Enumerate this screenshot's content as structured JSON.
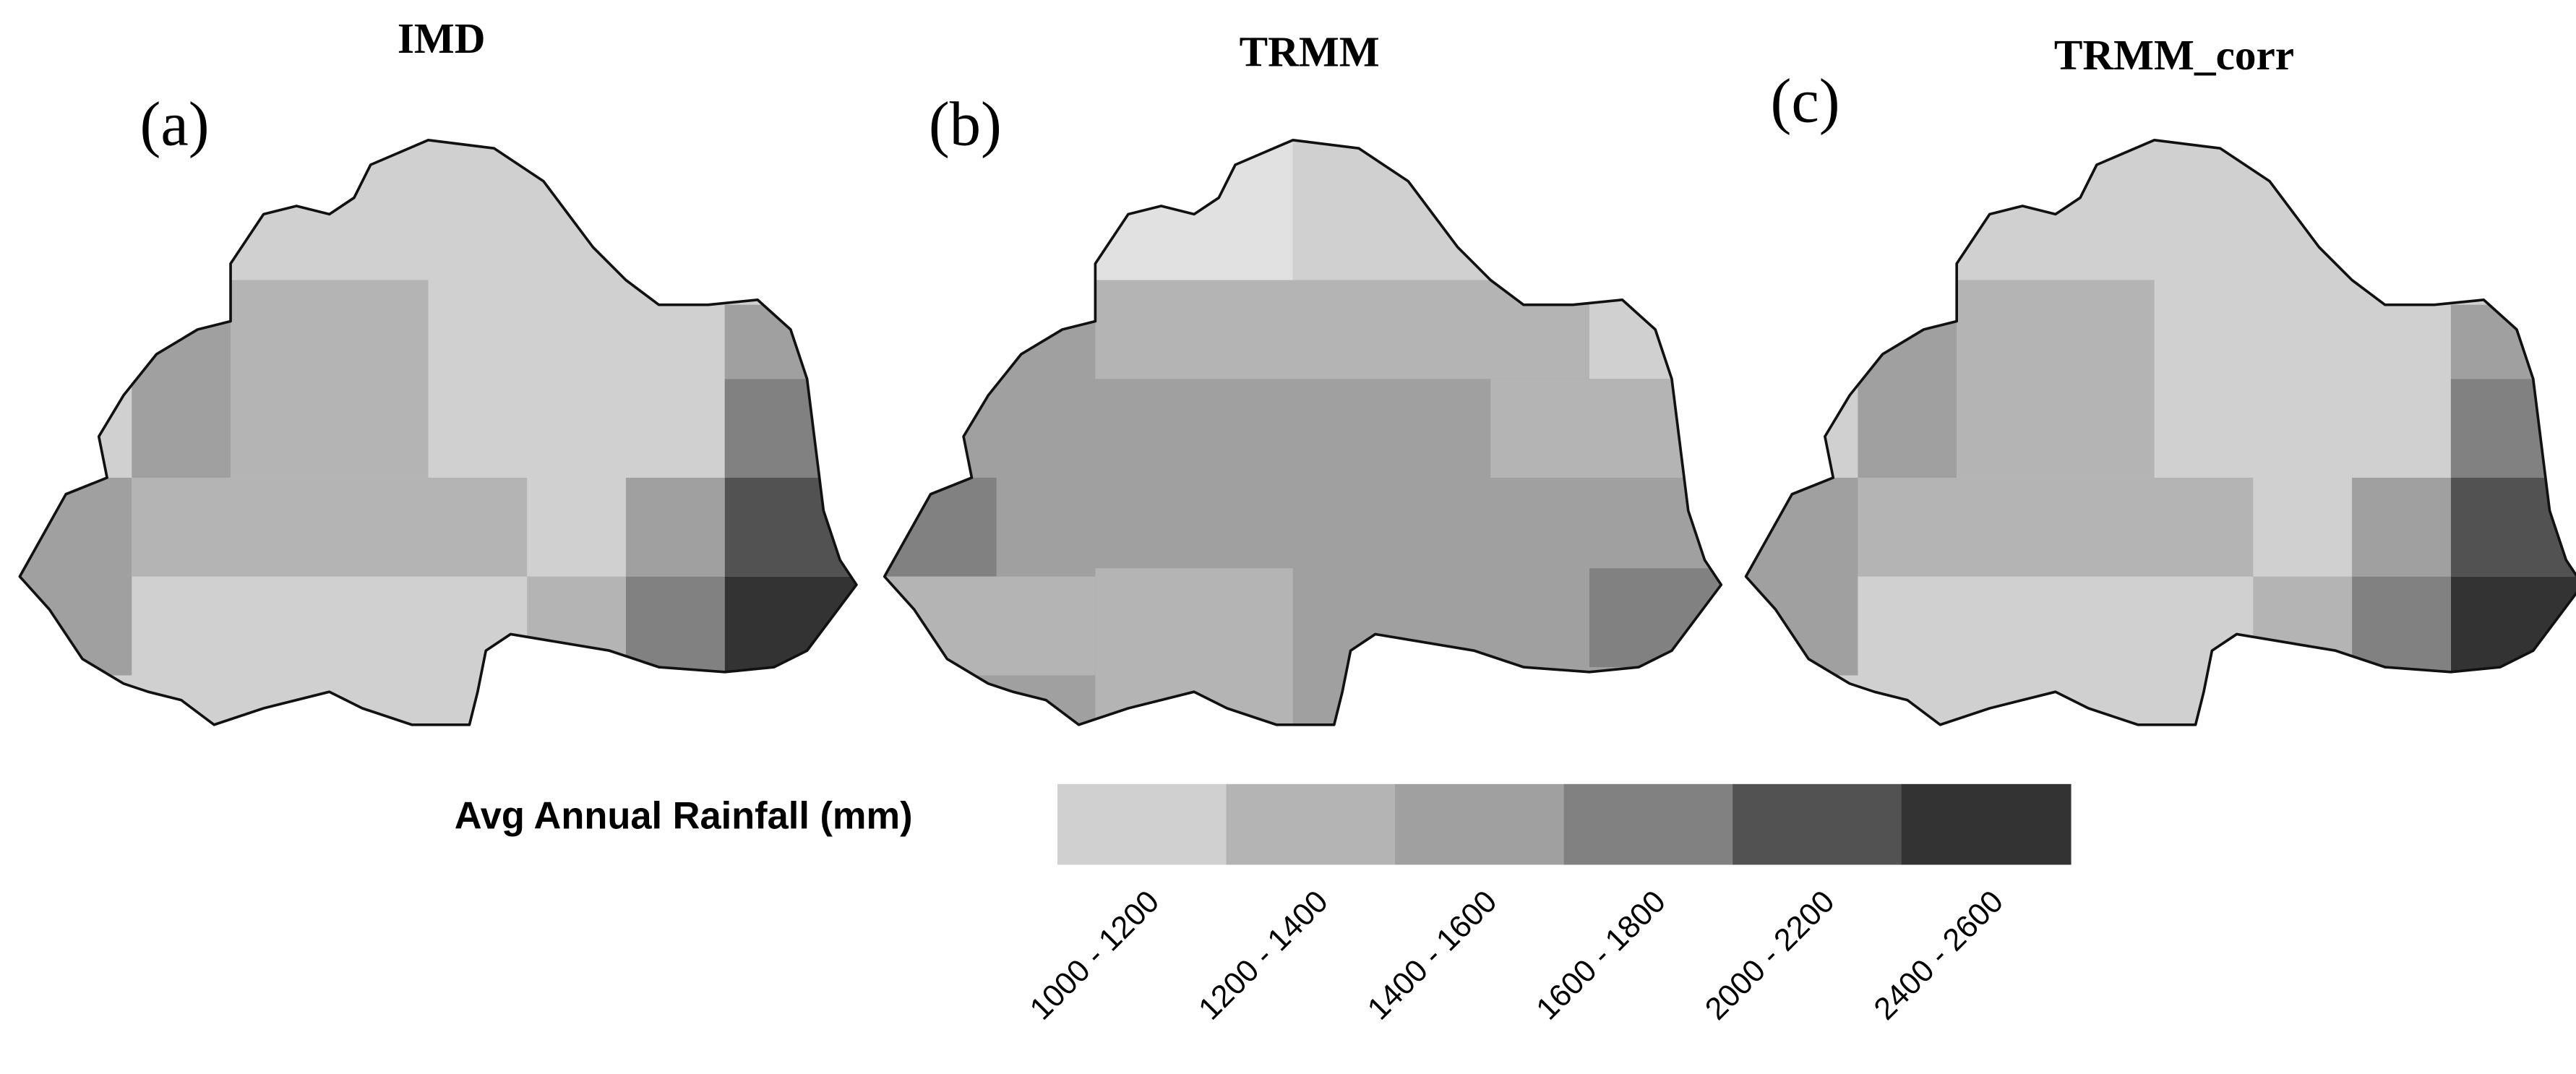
{
  "panels": [
    {
      "title": "IMD",
      "label": "(a)"
    },
    {
      "title": "TRMM",
      "label": "(b)"
    },
    {
      "title": "TRMM_corr",
      "label": "(c)"
    }
  ],
  "legend": {
    "title": "Avg Annual Rainfall (mm)",
    "classes": [
      {
        "label": "1000 - 1200",
        "color": "#d0d0d0"
      },
      {
        "label": "1200 - 1400",
        "color": "#b4b4b4"
      },
      {
        "label": "1400 - 1600",
        "color": "#a0a0a0"
      },
      {
        "label": "1600 - 1800",
        "color": "#818181"
      },
      {
        "label": "2000 - 2200",
        "color": "#525252"
      },
      {
        "label": "2400 - 2600",
        "color": "#333333"
      }
    ]
  }
}
